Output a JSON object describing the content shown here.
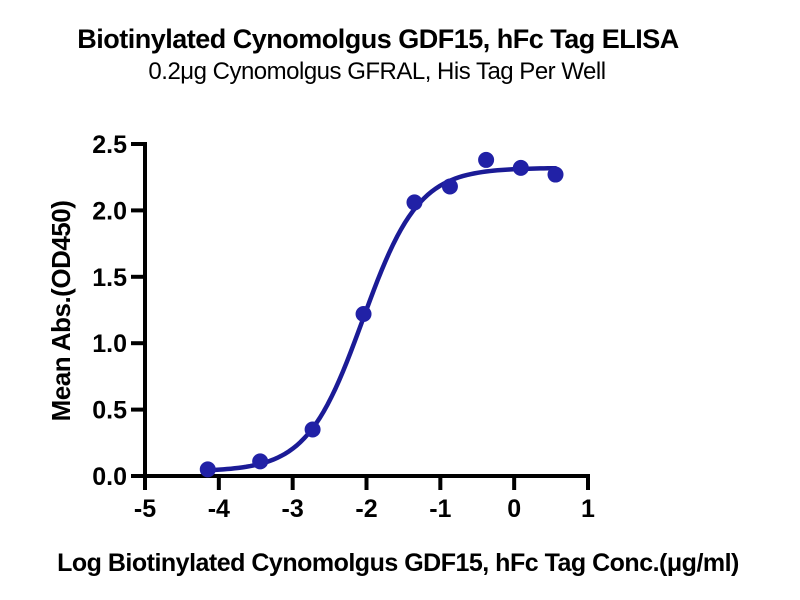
{
  "chart_data": {
    "type": "scatter",
    "title": "Biotinylated Cynomolgus GDF15, hFc Tag ELISA",
    "subtitle": "0.2μg Cynomolgus GFRAL, His Tag Per Well",
    "xlabel": "Log Biotinylated Cynomolgus GDF15, hFc Tag Conc.(μg/ml)",
    "ylabel": "Mean Abs.(OD450)",
    "xlim": [
      -5,
      1
    ],
    "ylim": [
      0,
      2.5
    ],
    "x_ticks": [
      -5,
      -4,
      -3,
      -2,
      -1,
      0,
      1
    ],
    "x_tick_labels": [
      "-5",
      "-4",
      "-3",
      "-2",
      "-1",
      "0",
      "1"
    ],
    "y_ticks": [
      0,
      0.5,
      1,
      1.5,
      2,
      2.5
    ],
    "y_tick_labels": [
      "0.0",
      "0.5",
      "1.0",
      "1.5",
      "2.0",
      "2.5"
    ],
    "grid": false,
    "legend": "none",
    "series": [
      {
        "name": "Biotinylated Cynomolgus GDF15, hFc Tag",
        "x": [
          -4.15,
          -3.44,
          -2.73,
          -2.04,
          -1.35,
          -0.87,
          -0.38,
          0.09,
          0.56
        ],
        "y": [
          0.05,
          0.11,
          0.35,
          1.22,
          2.06,
          2.18,
          2.38,
          2.32,
          2.27
        ]
      }
    ],
    "fit_curve": {
      "model": "4PL",
      "bottom": 0.035,
      "top": 2.32,
      "logEC50": -2.05,
      "hillslope": 1.15
    },
    "colors": {
      "curve": "#1B1B96",
      "marker": "#2121A6",
      "axis": "#000000",
      "text": "#000000"
    }
  }
}
